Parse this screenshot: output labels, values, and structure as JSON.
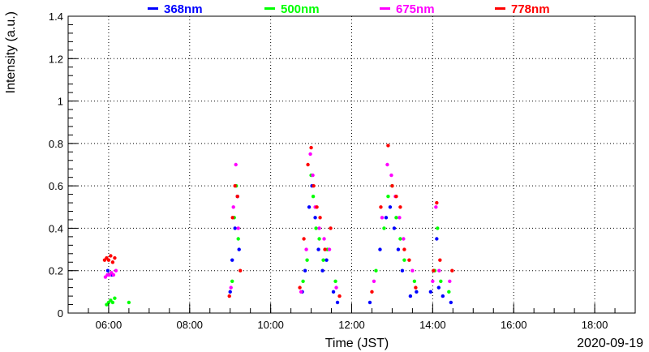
{
  "chart_data": {
    "type": "scatter",
    "title": "",
    "xlabel": "Time (JST)",
    "ylabel": "Intensity (a.u.)",
    "date_label": "2020-09-19",
    "x_unit": "hour (JST)",
    "xlim": [
      5.0,
      19.0
    ],
    "ylim": [
      0,
      1.4
    ],
    "x_ticks": [
      6,
      8,
      10,
      12,
      14,
      16,
      18
    ],
    "x_tick_labels": [
      "06:00",
      "08:00",
      "10:00",
      "12:00",
      "14:00",
      "16:00",
      "18:00"
    ],
    "y_ticks": [
      0,
      0.2,
      0.4,
      0.6,
      0.8,
      1,
      1.2,
      1.4
    ],
    "y_tick_labels": [
      "0",
      "0.2",
      "0.4",
      "0.6",
      "0.8",
      "1",
      "1.2",
      "1.4"
    ],
    "grid": true,
    "legend_position": "top",
    "series": [
      {
        "name": "368nm",
        "color": "#0000ff",
        "x": [
          5.98,
          6.08,
          9.0,
          9.05,
          9.12,
          9.18,
          9.22,
          10.78,
          10.85,
          10.95,
          11.02,
          11.1,
          11.18,
          11.28,
          11.38,
          11.55,
          11.65,
          12.45,
          12.7,
          12.85,
          12.95,
          13.05,
          13.15,
          13.25,
          13.45,
          13.6,
          13.95,
          14.1,
          14.15,
          14.25,
          14.45
        ],
        "y": [
          0.2,
          0.18,
          0.1,
          0.25,
          0.4,
          0.55,
          0.3,
          0.1,
          0.2,
          0.5,
          0.6,
          0.45,
          0.3,
          0.2,
          0.25,
          0.1,
          0.05,
          0.05,
          0.3,
          0.45,
          0.5,
          0.4,
          0.3,
          0.2,
          0.08,
          0.1,
          0.1,
          0.35,
          0.12,
          0.08,
          0.05
        ]
      },
      {
        "name": "500nm",
        "color": "#00ff00",
        "x": [
          5.95,
          6.0,
          6.05,
          6.1,
          6.15,
          6.5,
          9.05,
          9.1,
          9.15,
          9.2,
          10.8,
          10.9,
          11.0,
          11.05,
          11.12,
          11.2,
          11.3,
          11.4,
          11.6,
          12.6,
          12.8,
          12.9,
          13.0,
          13.1,
          13.2,
          13.3,
          13.55,
          14.05,
          14.12,
          14.2,
          14.4
        ],
        "y": [
          0.04,
          0.05,
          0.06,
          0.05,
          0.07,
          0.05,
          0.15,
          0.45,
          0.6,
          0.35,
          0.15,
          0.25,
          0.65,
          0.55,
          0.4,
          0.35,
          0.25,
          0.3,
          0.15,
          0.2,
          0.4,
          0.55,
          0.6,
          0.45,
          0.35,
          0.25,
          0.15,
          0.2,
          0.4,
          0.15,
          0.1
        ]
      },
      {
        "name": "675nm",
        "color": "#ff00ff",
        "x": [
          5.92,
          5.97,
          6.02,
          6.07,
          6.12,
          6.18,
          9.02,
          9.08,
          9.14,
          9.2,
          10.75,
          10.88,
          10.98,
          11.04,
          11.1,
          11.2,
          11.32,
          11.45,
          11.62,
          12.55,
          12.75,
          12.88,
          12.98,
          13.08,
          13.18,
          13.28,
          13.5,
          14.0,
          14.08,
          14.16,
          14.42
        ],
        "y": [
          0.17,
          0.18,
          0.18,
          0.19,
          0.18,
          0.2,
          0.12,
          0.5,
          0.7,
          0.4,
          0.1,
          0.3,
          0.75,
          0.65,
          0.5,
          0.4,
          0.35,
          0.3,
          0.12,
          0.15,
          0.45,
          0.7,
          0.65,
          0.55,
          0.45,
          0.35,
          0.2,
          0.15,
          0.5,
          0.2,
          0.15
        ]
      },
      {
        "name": "778nm",
        "color": "#ff0000",
        "x": [
          5.9,
          5.95,
          6.0,
          6.05,
          6.1,
          6.15,
          8.98,
          9.06,
          9.12,
          9.18,
          9.25,
          10.72,
          10.82,
          10.92,
          11.0,
          11.06,
          11.14,
          11.22,
          11.34,
          11.48,
          11.7,
          12.5,
          12.72,
          12.9,
          13.0,
          13.1,
          13.2,
          13.3,
          13.42,
          13.58,
          14.02,
          14.1,
          14.18,
          14.48
        ],
        "y": [
          0.25,
          0.26,
          0.25,
          0.27,
          0.24,
          0.26,
          0.08,
          0.45,
          0.6,
          0.55,
          0.2,
          0.12,
          0.35,
          0.7,
          0.78,
          0.6,
          0.5,
          0.45,
          0.3,
          0.4,
          0.08,
          0.1,
          0.5,
          0.79,
          0.6,
          0.55,
          0.5,
          0.3,
          0.25,
          0.12,
          0.2,
          0.52,
          0.25,
          0.2
        ]
      }
    ]
  }
}
